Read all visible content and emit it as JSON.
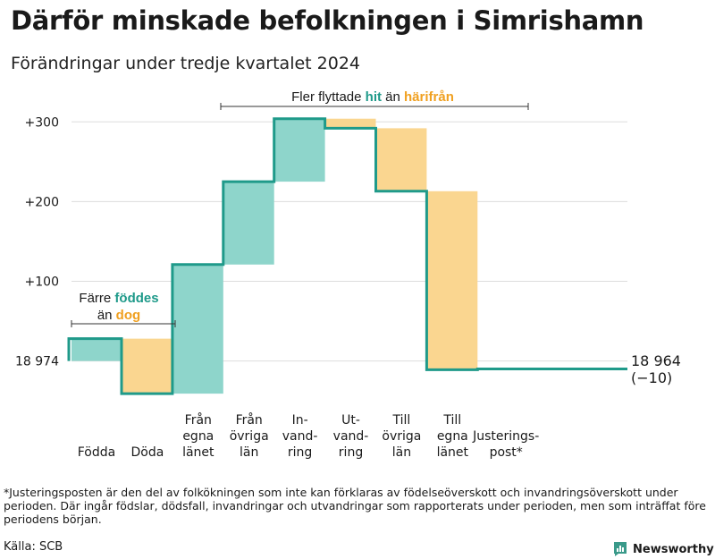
{
  "title": "Därför minskade befolkningen i Simrishamn",
  "subtitle": "Förändringar under tredje kvartalet 2024",
  "colors": {
    "gain": "#8ed5cb",
    "loss": "#fad690",
    "line": "#1f9a8a",
    "grid": "#dddddd",
    "gainText": "#1f9a8a",
    "lossText": "#f0a020"
  },
  "chart_data": {
    "type": "waterfall",
    "start_label": "18 974",
    "end_label": "18 964",
    "end_change_label": "(−10)",
    "ylim": [
      -42,
      325
    ],
    "yticks": [
      {
        "value": 300,
        "label": "+300"
      },
      {
        "value": 200,
        "label": "+200"
      },
      {
        "value": 100,
        "label": "+100"
      },
      {
        "value": 0,
        "label": "18 974"
      }
    ],
    "steps": [
      {
        "label_lines": [
          "Födda"
        ],
        "start": 0,
        "end": 28,
        "kind": "gain"
      },
      {
        "label_lines": [
          "Döda"
        ],
        "start": 28,
        "end": -41,
        "kind": "loss"
      },
      {
        "label_lines": [
          "Från",
          "egna",
          "länet"
        ],
        "start": -41,
        "end": 121,
        "kind": "gain"
      },
      {
        "label_lines": [
          "Från",
          "övriga",
          "län"
        ],
        "start": 121,
        "end": 225,
        "kind": "gain"
      },
      {
        "label_lines": [
          "In-",
          "vand-",
          "ring"
        ],
        "start": 225,
        "end": 304,
        "kind": "gain"
      },
      {
        "label_lines": [
          "Ut-",
          "vand-",
          "ring"
        ],
        "start": 304,
        "end": 292,
        "kind": "loss"
      },
      {
        "label_lines": [
          "Till",
          "övriga",
          "län"
        ],
        "start": 292,
        "end": 213,
        "kind": "loss"
      },
      {
        "label_lines": [
          "Till",
          "egna",
          "länet"
        ],
        "start": 213,
        "end": -11,
        "kind": "loss"
      },
      {
        "label_lines": [
          "Justerings-",
          "post*"
        ],
        "start": -11,
        "end": -10,
        "kind": "gain"
      }
    ],
    "annotations": {
      "births": {
        "line1": [
          "Färre ",
          "föddes"
        ],
        "line2": [
          "än ",
          "dog"
        ]
      },
      "migration": {
        "parts": [
          "Fler flyttade ",
          "hit",
          " än ",
          "härifrån"
        ]
      }
    }
  },
  "footnote": "*Justeringsposten är den del av folkökningen som inte kan förklaras av födelseöverskott och invandringsöverskott under perioden. Där ingår födslar, dödsfall, invandringar och utvandringar som rapporterats under perioden, men som inträffat före periodens början.",
  "source": "Källa: SCB",
  "brand": "Newsworthy"
}
